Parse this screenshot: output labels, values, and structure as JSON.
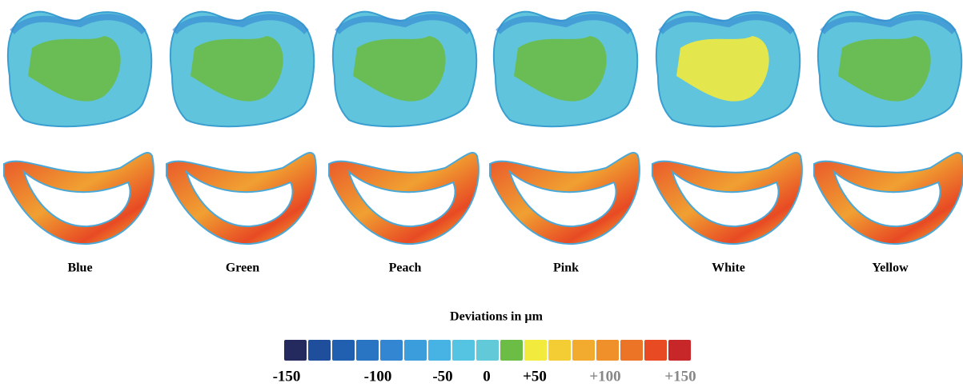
{
  "specimens": [
    "Blue",
    "Green",
    "Peach",
    "Pink",
    "White",
    "Yellow"
  ],
  "legend": {
    "title": "Deviations in µm",
    "colors": [
      "#252a5e",
      "#1f4e9c",
      "#2160b0",
      "#2a74c4",
      "#3387d2",
      "#3c9ddc",
      "#47b2e4",
      "#55c3e2",
      "#62c9d8",
      "#6cbd45",
      "#f2ea3c",
      "#f4cc33",
      "#f2ab2e",
      "#ef902a",
      "#ec7426",
      "#e84a24",
      "#c8272a"
    ],
    "ticks": [
      "-150",
      "-100",
      "-50",
      "0",
      "+50",
      "+100",
      "+150"
    ]
  }
}
